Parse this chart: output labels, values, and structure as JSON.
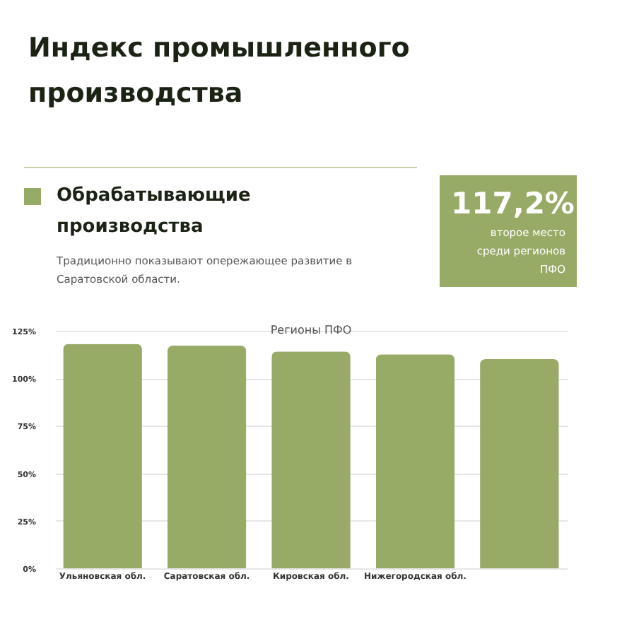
{
  "chart_data": {
    "type": "bar",
    "title": "Индекс промышленного производства",
    "subtitle": "Обрабатывающие производства",
    "annotations": [
      "Традиционно показывают опережающее развитие в Саратовской области.",
      "117,2%",
      "второе место среди регионов ПФО",
      "Регионы ПФО"
    ],
    "categories": [
      "Ульяновская обл.",
      "Саратовская обл.",
      "Кировская обл.",
      "Нижегородская обл.",
      null
    ],
    "values": [
      118.1,
      117.2,
      114.1,
      112.6,
      110.1
    ],
    "color": "#97aa66",
    "ylim": [
      0,
      125
    ],
    "yticks": [
      {
        "value": 0,
        "label": "0%"
      },
      {
        "value": 25,
        "label": "25%"
      },
      {
        "value": 50,
        "label": "50%"
      },
      {
        "value": 75,
        "label": "75%"
      },
      {
        "value": 100,
        "label": "100%"
      },
      {
        "value": 125,
        "label": "125%"
      }
    ],
    "grid": "y"
  }
}
